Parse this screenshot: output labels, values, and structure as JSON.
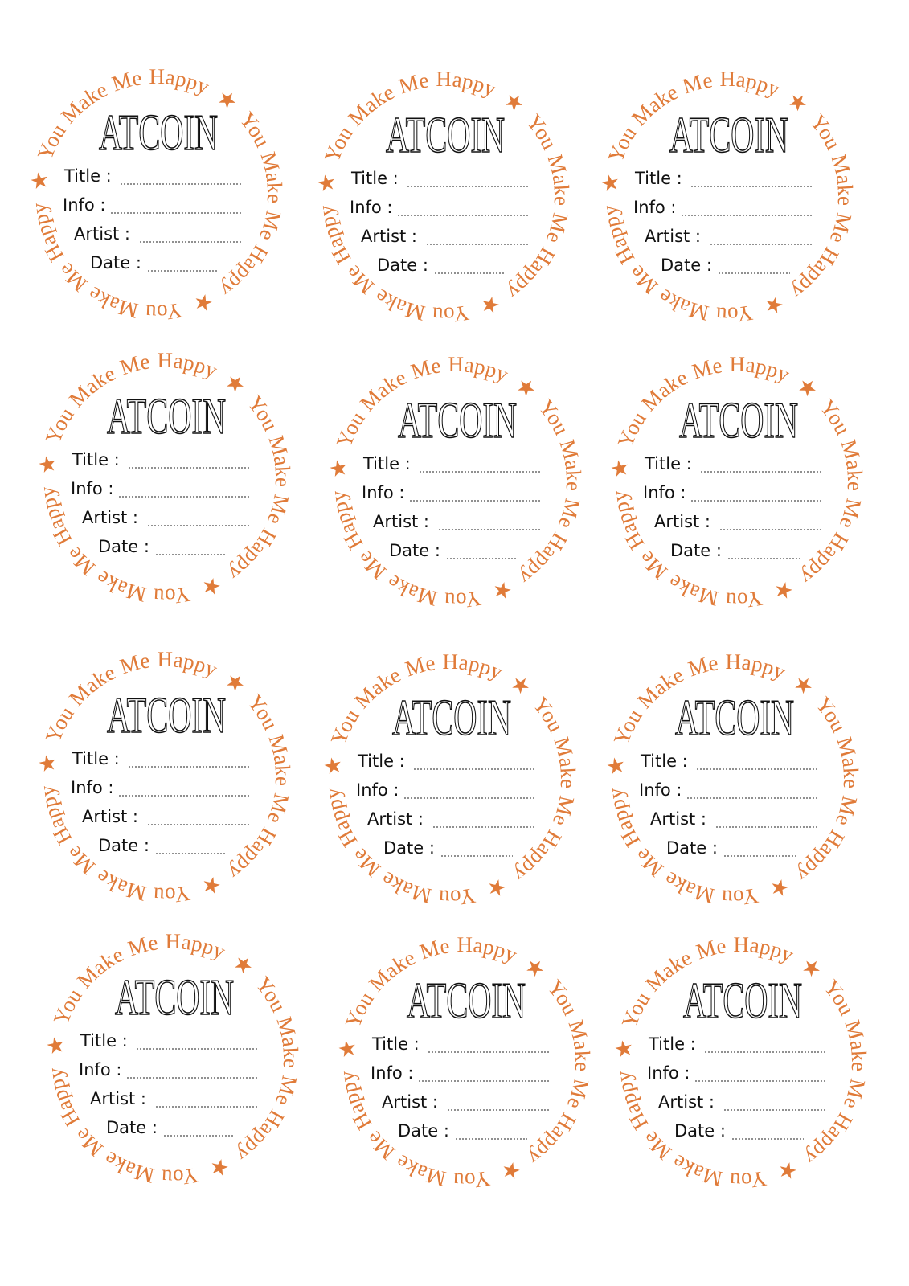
{
  "sheet": {
    "accent_color": "#e07b39",
    "ink_color": "#111111",
    "label_count": 12,
    "label_template": {
      "brand": "ATCOIN",
      "ring_text": "You Make Me Happy",
      "ring_separator_icon": "star-icon",
      "fields": [
        "Title  :",
        "Info :",
        "Artist :",
        "Date :"
      ]
    }
  }
}
